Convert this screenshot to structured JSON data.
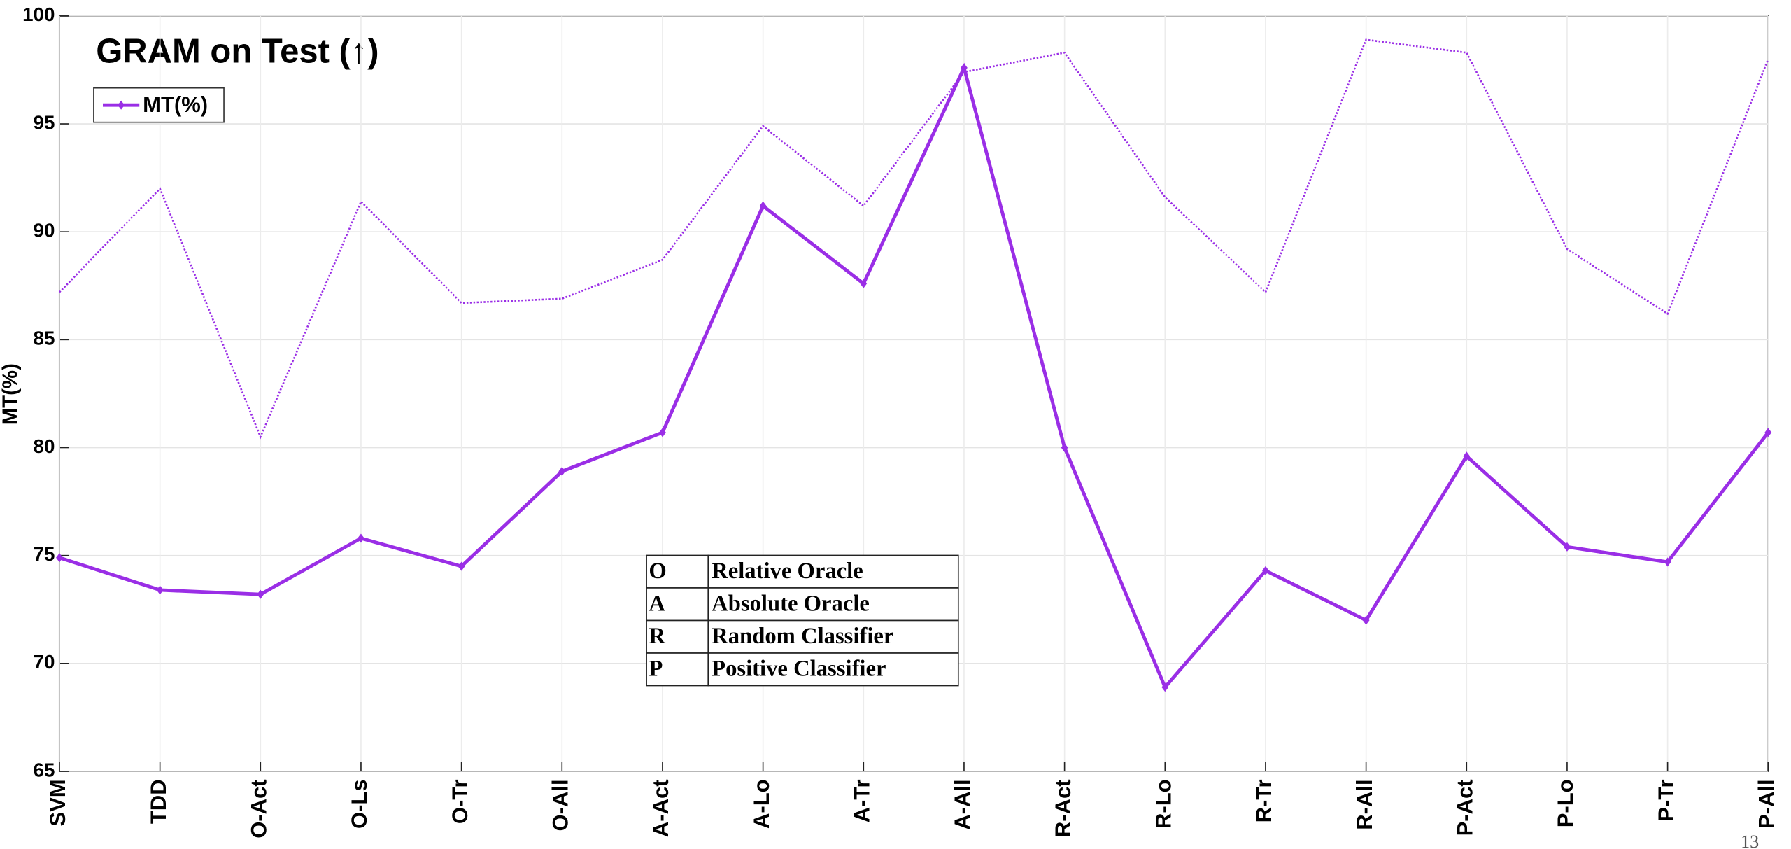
{
  "chart_data": {
    "type": "line",
    "title": "GRAM on Test (↑)",
    "y_label": "MT(%)",
    "categories": [
      "SVM",
      "TDD",
      "O-Act",
      "O-Ls",
      "O-Tr",
      "O-All",
      "A-Act",
      "A-Lo",
      "A-Tr",
      "A-All",
      "R-Act",
      "R-Lo",
      "R-Tr",
      "R-All",
      "P-Act",
      "P-Lo",
      "P-Tr",
      "P-All"
    ],
    "category_colors": [
      "#000000",
      "#000000",
      "#22e022",
      "#22e022",
      "#22e022",
      "#22e022",
      "#2f8a2f",
      "#2f8a2f",
      "#2f8a2f",
      "#2f8a2f",
      "#ff1010",
      "#ff1010",
      "#ff1010",
      "#ff1010",
      "#ff20ff",
      "#ff20ff",
      "#ff20ff",
      "#ff20ff"
    ],
    "series": [
      {
        "name": "MT(%)",
        "color": "#9a2ee6",
        "style": "solid",
        "values": [
          74.9,
          73.4,
          73.2,
          75.8,
          74.5,
          78.9,
          80.7,
          91.2,
          87.6,
          97.6,
          80.0,
          68.9,
          74.3,
          72.0,
          79.6,
          75.4,
          74.7,
          80.7
        ]
      },
      {
        "color": "#9a2ee6",
        "style": "dotted",
        "values": [
          87.2,
          92.0,
          80.5,
          91.4,
          86.7,
          86.9,
          88.7,
          94.9,
          91.2,
          97.4,
          98.3,
          91.6,
          87.2,
          98.9,
          98.3,
          89.2,
          86.2,
          98.0
        ]
      }
    ],
    "ylim": [
      65,
      100
    ],
    "yticks": [
      65,
      70,
      75,
      80,
      85,
      90,
      95,
      100
    ],
    "grid": true,
    "legend": "upper left",
    "annotation_table": [
      {
        "key": "O",
        "label": "Relative Oracle",
        "color": "#22e022"
      },
      {
        "key": "A",
        "label": "Absolute Oracle",
        "color": "#2f8a2f"
      },
      {
        "key": "R",
        "label": "Random Classifier",
        "color": "#ff1010"
      },
      {
        "key": "P",
        "label": "Positive Classifier",
        "color": "#ff20ff"
      }
    ],
    "page_number": "13"
  }
}
